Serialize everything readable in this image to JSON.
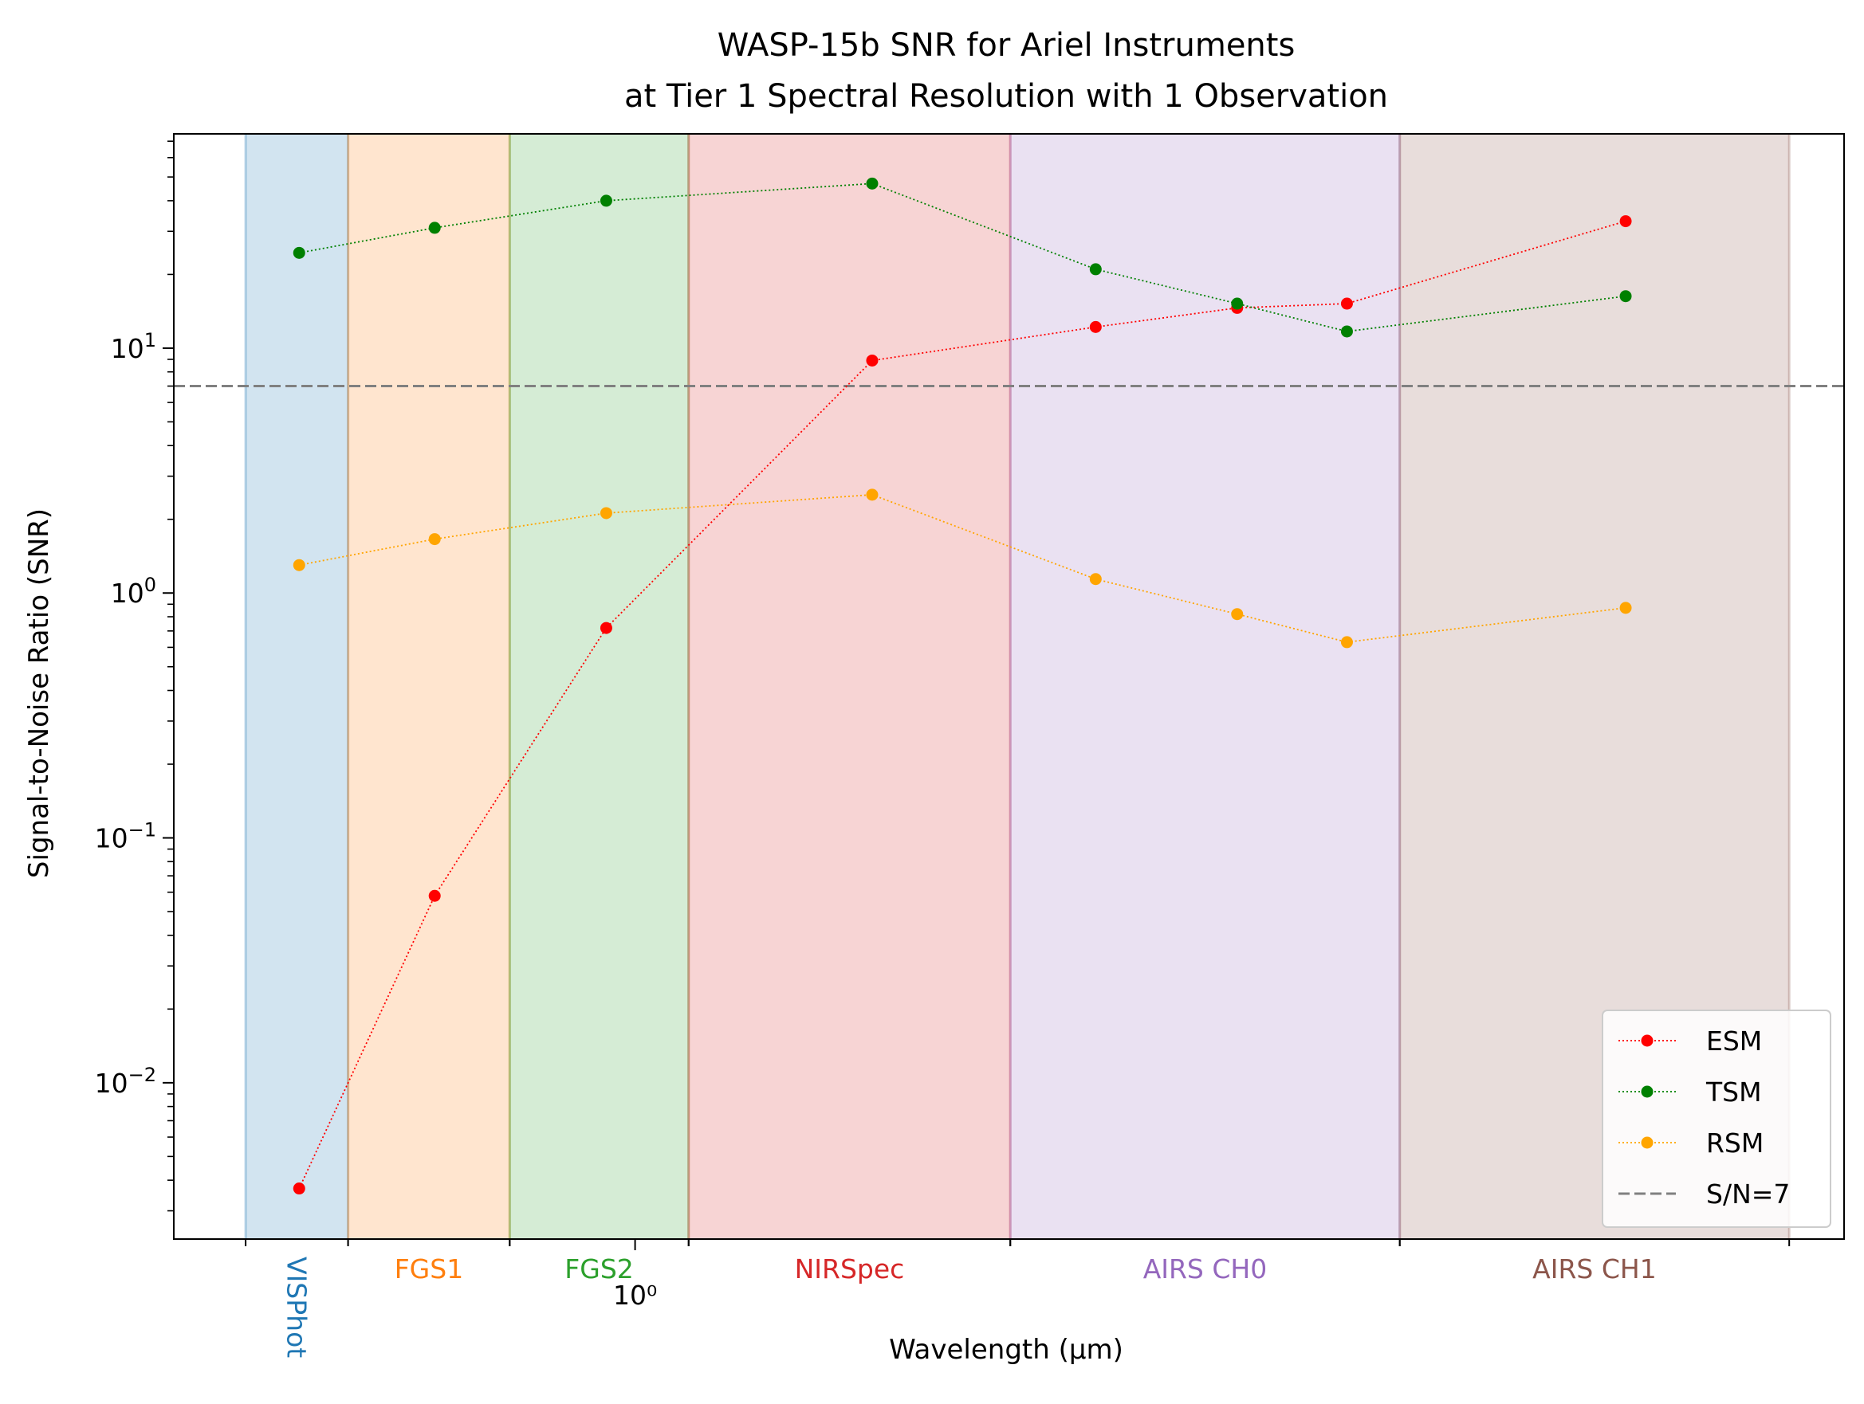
{
  "chart_data": {
    "type": "line",
    "title_line1": "WASP-15b SNR for Ariel Instruments",
    "title_line2": "at Tier 1 Spectral Resolution with 1 Observation",
    "xlabel": "Wavelength (μm)",
    "ylabel": "Signal-to-Noise Ratio (SNR)",
    "xscale": "log",
    "yscale": "log",
    "xlim": [
      0.44,
      8.6
    ],
    "ylim": [
      0.0023,
      75
    ],
    "x_tick_label": "10⁰",
    "y_ticks": [
      {
        "value": 0.01,
        "base": "10",
        "exp": "−2"
      },
      {
        "value": 0.1,
        "base": "10",
        "exp": "−1"
      },
      {
        "value": 1,
        "base": "10",
        "exp": "0"
      },
      {
        "value": 10,
        "base": "10",
        "exp": "1"
      }
    ],
    "bands": [
      {
        "name": "VISPhot",
        "x0": 0.5,
        "x1": 0.6,
        "color": "#1f77b4",
        "rotated": true
      },
      {
        "name": "FGS1",
        "x0": 0.6,
        "x1": 0.8,
        "color": "#ff7f0e",
        "rotated": false
      },
      {
        "name": "FGS2",
        "x0": 0.8,
        "x1": 1.1,
        "color": "#2ca02c",
        "rotated": false
      },
      {
        "name": "NIRSpec",
        "x0": 1.1,
        "x1": 1.95,
        "color": "#d62728",
        "rotated": false
      },
      {
        "name": "AIRS CH0",
        "x0": 1.95,
        "x1": 3.9,
        "color": "#9467bd",
        "rotated": false
      },
      {
        "name": "AIRS CH1",
        "x0": 3.9,
        "x1": 7.8,
        "color": "#8c564b",
        "rotated": false
      }
    ],
    "x": [
      0.55,
      0.7,
      0.95,
      1.525,
      2.27,
      2.92,
      3.55,
      5.83
    ],
    "series": [
      {
        "name": "ESM",
        "color": "#ff0000",
        "values": [
          0.0037,
          0.058,
          0.72,
          8.9,
          12.2,
          14.6,
          15.2,
          33
        ]
      },
      {
        "name": "TSM",
        "color": "#008000",
        "values": [
          24.5,
          31,
          40,
          47,
          21,
          15.2,
          11.7,
          16.3
        ]
      },
      {
        "name": "RSM",
        "color": "#ffa500",
        "values": [
          1.3,
          1.66,
          2.12,
          2.52,
          1.14,
          0.82,
          0.63,
          0.87
        ]
      }
    ],
    "reference_line": {
      "label": "S/N=7",
      "value": 7,
      "color": "#808080"
    },
    "legend_position": "lower right",
    "grid": false
  }
}
